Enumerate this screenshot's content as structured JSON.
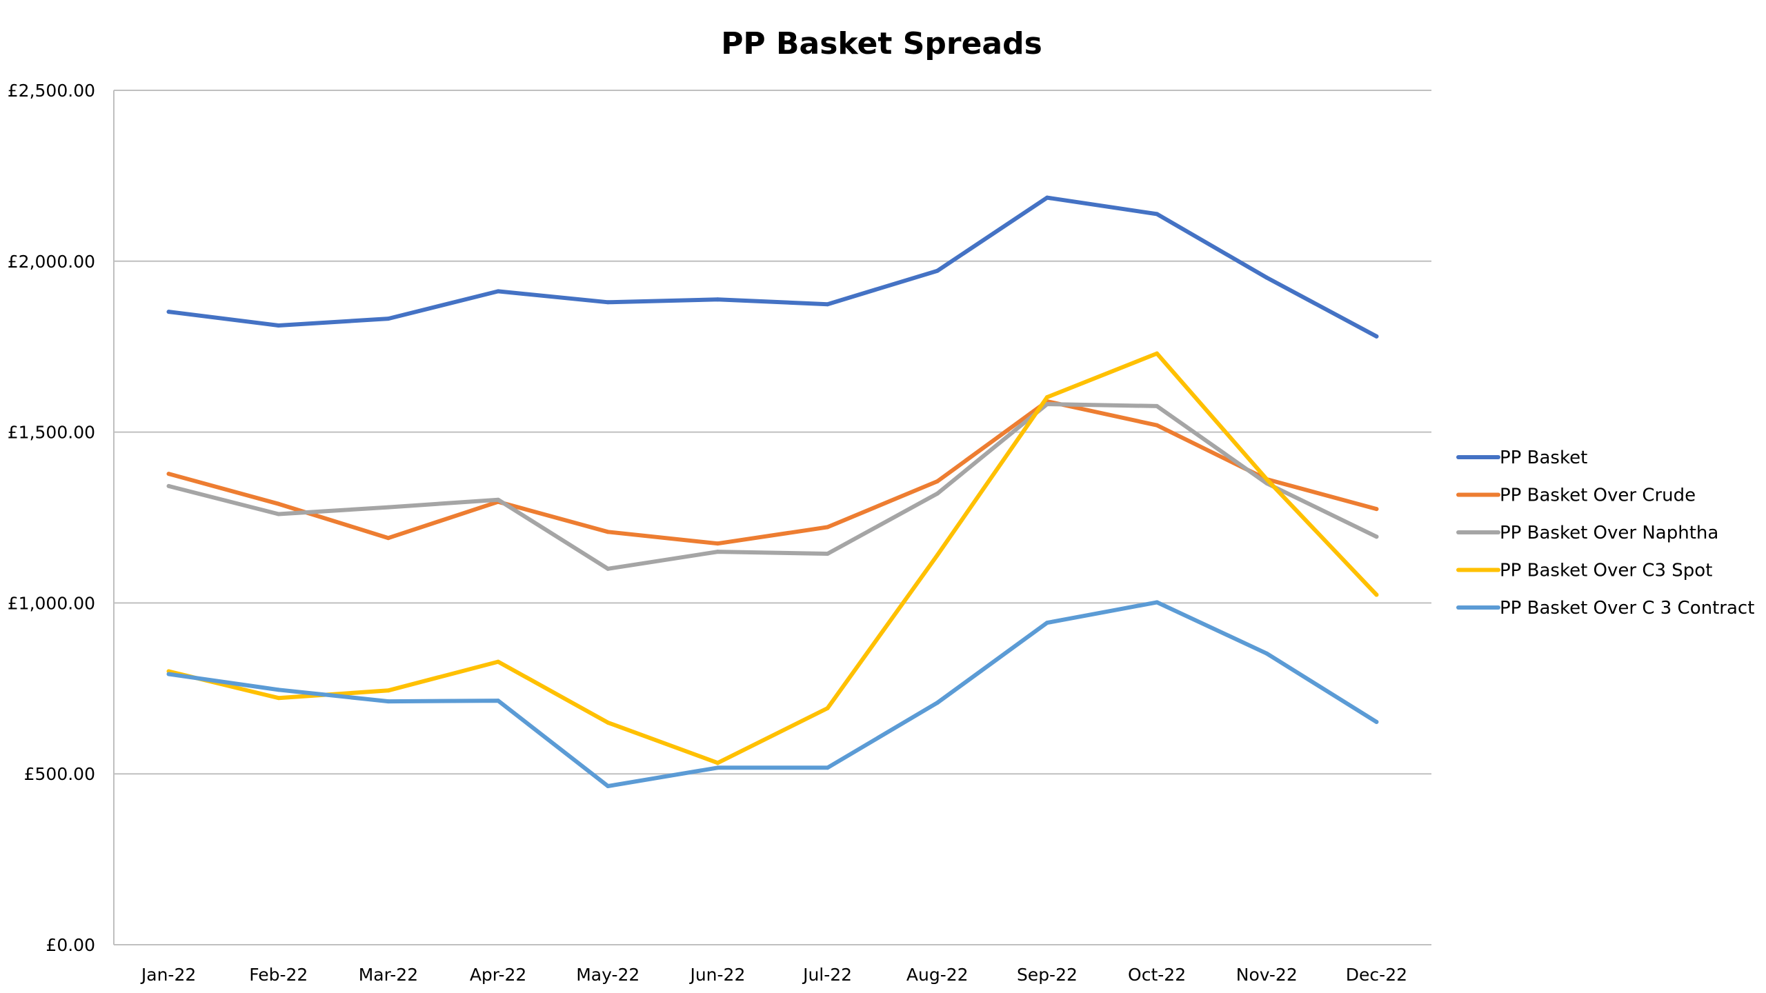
{
  "chart_data": {
    "type": "line",
    "title": "PP Basket Spreads",
    "xlabel": "",
    "ylabel": "",
    "ylim": [
      0,
      2500
    ],
    "y_ticks": [
      0,
      500,
      1000,
      1500,
      2000,
      2500
    ],
    "y_tick_labels": [
      "£0.00",
      "£500.00",
      "£1,000.00",
      "£1,500.00",
      "£2,000.00",
      "£2,500.00"
    ],
    "categories": [
      "Jan-22",
      "Feb-22",
      "Mar-22",
      "Apr-22",
      "May-22",
      "Jun-22",
      "Jul-22",
      "Aug-22",
      "Sep-22",
      "Oct-22",
      "Nov-22",
      "Dec-22"
    ],
    "grid": true,
    "legend_position": "right",
    "series": [
      {
        "name": "PP Basket",
        "color": "#4472C4",
        "values": [
          1852,
          1812,
          1832,
          1912,
          1880,
          1888,
          1874,
          1972,
          2186,
          2138,
          1952,
          1780
        ]
      },
      {
        "name": "PP Basket Over Crude",
        "color": "#ED7D31",
        "values": [
          1378,
          1290,
          1190,
          1296,
          1208,
          1174,
          1222,
          1356,
          1590,
          1520,
          1362,
          1275
        ]
      },
      {
        "name": "PP Basket Over Naphtha",
        "color": "#A5A5A5",
        "values": [
          1342,
          1260,
          1280,
          1302,
          1100,
          1150,
          1144,
          1320,
          1582,
          1576,
          1350,
          1194
        ]
      },
      {
        "name": "PP Basket Over C3 Spot",
        "color": "#FFC000",
        "values": [
          800,
          722,
          744,
          828,
          650,
          532,
          692,
          1140,
          1602,
          1730,
          1362,
          1024
        ]
      },
      {
        "name": "PP Basket Over C 3 Contract",
        "color": "#5B9BD5",
        "values": [
          792,
          746,
          712,
          714,
          464,
          518,
          518,
          708,
          942,
          1002,
          852,
          652
        ]
      }
    ]
  }
}
